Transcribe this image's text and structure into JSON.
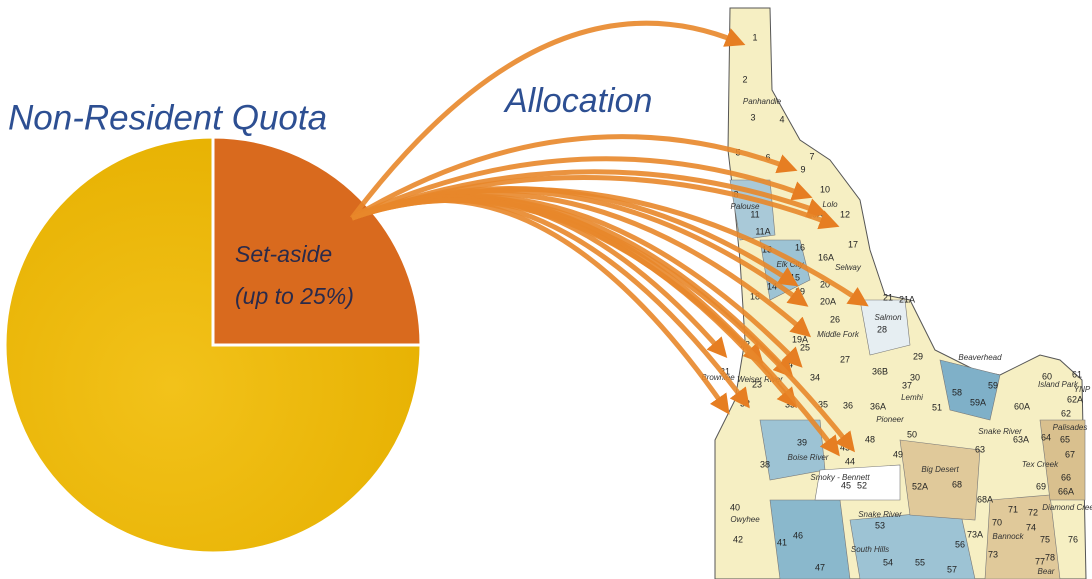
{
  "title": "Non-Resident Quota",
  "allocation_label": "Allocation",
  "set_aside": {
    "line1": "Set-aside",
    "line2": "(up to 25%)",
    "percent": 25
  },
  "map": {
    "units": [
      "1",
      "2",
      "3",
      "4",
      "5",
      "6",
      "7",
      "8",
      "9",
      "10",
      "10A",
      "11",
      "11A",
      "12",
      "13",
      "14",
      "15",
      "16",
      "16A",
      "17",
      "18",
      "19",
      "19A",
      "20",
      "20A",
      "21",
      "21A",
      "22",
      "23",
      "24",
      "25",
      "26",
      "27",
      "28",
      "29",
      "30",
      "31",
      "32",
      "33",
      "34",
      "35",
      "36",
      "36A",
      "36B",
      "37",
      "38",
      "39",
      "40",
      "41",
      "42",
      "43",
      "44",
      "45",
      "46",
      "47",
      "48",
      "49",
      "50",
      "51",
      "52",
      "52A",
      "53",
      "54",
      "55",
      "56",
      "57",
      "58",
      "59",
      "59A",
      "60",
      "60A",
      "61",
      "62",
      "62A",
      "63",
      "63A",
      "64",
      "65",
      "66",
      "66A",
      "67",
      "68",
      "68A",
      "69",
      "70",
      "71",
      "72",
      "73",
      "73A",
      "74",
      "75",
      "76",
      "77",
      "78"
    ],
    "regions": [
      "Panhandle",
      "Palouse",
      "Lolo",
      "Elk City",
      "Selway",
      "Salmon",
      "Middle Fork",
      "Weiser River",
      "Beaverhead",
      "Island Park",
      "Lemhi",
      "Pioneer",
      "Boise River",
      "Smoky - Bennett",
      "Big Desert",
      "Snake River",
      "Palisades",
      "Tex Creek",
      "Owyhee",
      "Snake River",
      "South Hills",
      "Bannock",
      "Diamond Creek",
      "Bear",
      "YNP",
      "Brownlee"
    ]
  }
}
